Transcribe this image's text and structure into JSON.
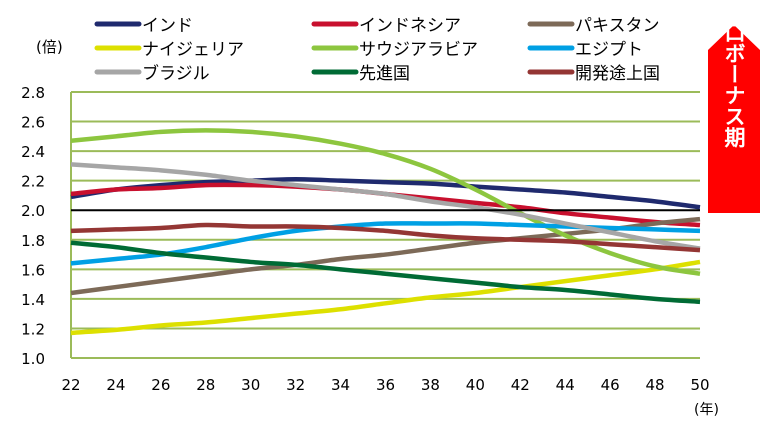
{
  "chart_data": {
    "type": "line",
    "ylabel": "(倍)",
    "xlabel": "(年)",
    "xlim": [
      22,
      50
    ],
    "ylim": [
      1.0,
      2.8
    ],
    "x_ticks": [
      "22",
      "24",
      "26",
      "28",
      "30",
      "32",
      "34",
      "36",
      "38",
      "40",
      "42",
      "44",
      "46",
      "48",
      "50"
    ],
    "y_ticks": [
      "1.0",
      "1.2",
      "1.4",
      "1.6",
      "1.8",
      "2.0",
      "2.2",
      "2.4",
      "2.6",
      "2.8"
    ],
    "grid": true,
    "grid_color": "#9bbb59",
    "reference_line": 2.0,
    "legend_position": "top",
    "x": [
      22,
      24,
      26,
      28,
      30,
      32,
      34,
      36,
      38,
      40,
      42,
      44,
      46,
      48,
      50
    ],
    "series": [
      {
        "name": "インド",
        "color": "#1f2a6e",
        "values": [
          2.09,
          2.14,
          2.17,
          2.19,
          2.2,
          2.21,
          2.2,
          2.19,
          2.18,
          2.16,
          2.14,
          2.12,
          2.09,
          2.06,
          2.02
        ]
      },
      {
        "name": "インドネシア",
        "color": "#c8102e",
        "values": [
          2.11,
          2.14,
          2.15,
          2.17,
          2.17,
          2.16,
          2.14,
          2.11,
          2.08,
          2.05,
          2.02,
          1.98,
          1.95,
          1.92,
          1.9
        ]
      },
      {
        "name": "パキスタン",
        "color": "#7d6a58",
        "values": [
          1.44,
          1.48,
          1.52,
          1.56,
          1.6,
          1.63,
          1.67,
          1.7,
          1.74,
          1.78,
          1.81,
          1.84,
          1.87,
          1.91,
          1.94
        ]
      },
      {
        "name": "ナイジェリア",
        "color": "#dde000",
        "values": [
          1.17,
          1.19,
          1.22,
          1.24,
          1.27,
          1.3,
          1.33,
          1.37,
          1.41,
          1.44,
          1.48,
          1.52,
          1.56,
          1.6,
          1.65
        ]
      },
      {
        "name": "サウジアラビア",
        "color": "#8dc63f",
        "values": [
          2.47,
          2.5,
          2.53,
          2.54,
          2.53,
          2.5,
          2.45,
          2.38,
          2.28,
          2.14,
          1.98,
          1.83,
          1.71,
          1.62,
          1.57
        ]
      },
      {
        "name": "エジプト",
        "color": "#00a0e4",
        "values": [
          1.64,
          1.67,
          1.7,
          1.75,
          1.81,
          1.86,
          1.89,
          1.91,
          1.91,
          1.91,
          1.9,
          1.89,
          1.88,
          1.87,
          1.86
        ]
      },
      {
        "name": "ブラジル",
        "color": "#a6a6a6",
        "values": [
          2.31,
          2.29,
          2.27,
          2.24,
          2.2,
          2.17,
          2.14,
          2.11,
          2.06,
          2.02,
          1.97,
          1.91,
          1.85,
          1.79,
          1.74
        ]
      },
      {
        "name": "先進国",
        "color": "#006b35",
        "values": [
          1.78,
          1.75,
          1.71,
          1.68,
          1.65,
          1.63,
          1.6,
          1.57,
          1.54,
          1.51,
          1.48,
          1.46,
          1.43,
          1.4,
          1.38
        ]
      },
      {
        "name": "開発途上国",
        "color": "#943634",
        "values": [
          1.86,
          1.87,
          1.88,
          1.9,
          1.89,
          1.89,
          1.88,
          1.86,
          1.83,
          1.81,
          1.8,
          1.79,
          1.77,
          1.75,
          1.73
        ]
      }
    ],
    "annotation": {
      "text": "人口ボーナス期",
      "color": "#ff0000"
    }
  }
}
